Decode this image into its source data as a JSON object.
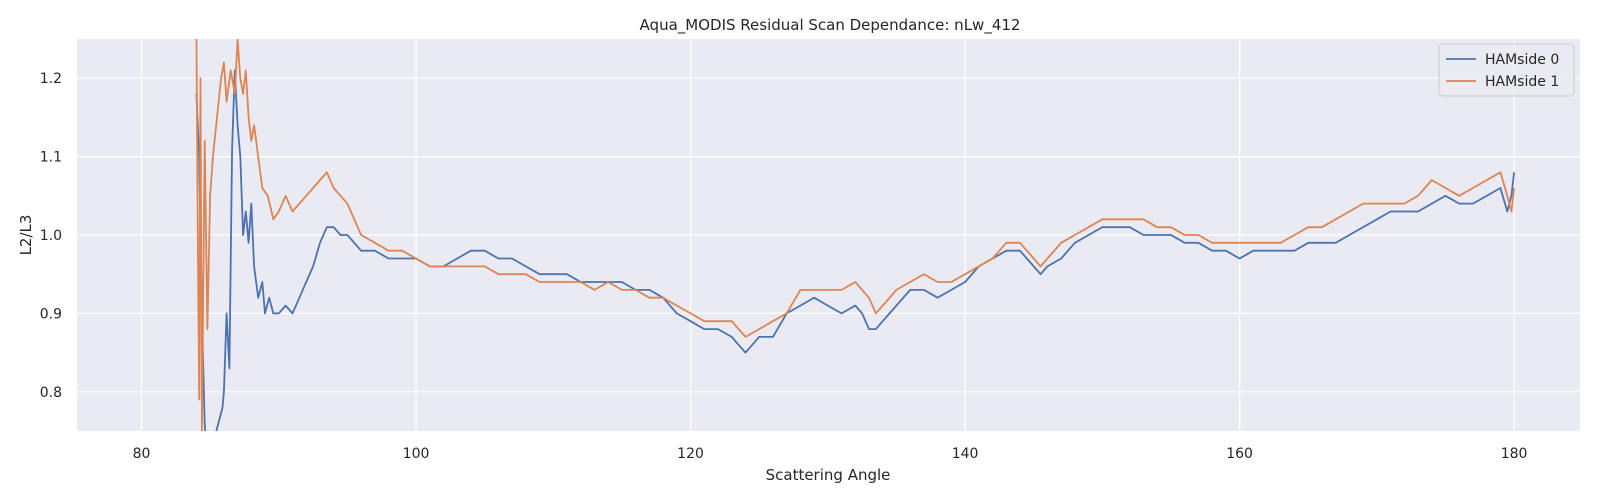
{
  "chart_data": {
    "type": "line",
    "title": "Aqua_MODIS Residual Scan Dependance: nLw_412",
    "xlabel": "Scattering Angle",
    "ylabel": "L2/L3",
    "xlim": [
      75.3,
      184.8
    ],
    "ylim": [
      0.75,
      1.25
    ],
    "xticks": [
      80,
      100,
      120,
      140,
      160,
      180
    ],
    "yticks": [
      0.8,
      0.9,
      1.0,
      1.1,
      1.2
    ],
    "xtick_labels": [
      "80",
      "100",
      "120",
      "140",
      "160",
      "180"
    ],
    "ytick_labels": [
      "0.8",
      "0.9",
      "1.0",
      "1.1",
      "1.2"
    ],
    "grid": true,
    "legend_position": "top-right",
    "background": "#eaeaf2",
    "series": [
      {
        "name": "HAMside 0",
        "color": "#4c72b0",
        "x": [
          84.0,
          84.2,
          84.4,
          84.6,
          84.8,
          85.0,
          85.3,
          85.6,
          85.9,
          86.0,
          86.2,
          86.4,
          86.6,
          86.8,
          87.0,
          87.2,
          87.4,
          87.6,
          87.8,
          88.0,
          88.2,
          88.5,
          88.8,
          89.0,
          89.3,
          89.6,
          90.0,
          90.5,
          91.0,
          91.5,
          92.0,
          92.5,
          93.0,
          93.5,
          94.0,
          94.5,
          95.0,
          96.0,
          97.0,
          98.0,
          99.0,
          100.0,
          101.0,
          102.0,
          103.0,
          104.0,
          105.0,
          106.0,
          107.0,
          108.0,
          109.0,
          110.0,
          111.0,
          112.0,
          113.0,
          114.0,
          115.0,
          116.0,
          117.0,
          118.0,
          119.0,
          120.0,
          121.0,
          122.0,
          123.0,
          123.5,
          124.0,
          124.5,
          125.0,
          126.0,
          127.0,
          128.0,
          129.0,
          130.0,
          131.0,
          132.0,
          132.5,
          133.0,
          133.5,
          134.0,
          135.0,
          136.0,
          137.0,
          138.0,
          139.0,
          140.0,
          141.0,
          142.0,
          143.0,
          144.0,
          145.0,
          145.5,
          146.0,
          147.0,
          148.0,
          149.0,
          150.0,
          151.0,
          152.0,
          153.0,
          154.0,
          155.0,
          156.0,
          157.0,
          158.0,
          159.0,
          160.0,
          161.0,
          162.0,
          163.0,
          164.0,
          165.0,
          166.0,
          167.0,
          168.0,
          169.0,
          170.0,
          171.0,
          172.0,
          173.0,
          174.0,
          175.0,
          176.0,
          177.0,
          178.0,
          179.0,
          179.5,
          179.8,
          180.0
        ],
        "y": [
          1.18,
          1.1,
          0.9,
          0.76,
          0.7,
          0.74,
          0.74,
          0.76,
          0.78,
          0.8,
          0.9,
          0.83,
          1.11,
          1.21,
          1.14,
          1.1,
          1.0,
          1.03,
          0.99,
          1.04,
          0.96,
          0.92,
          0.94,
          0.9,
          0.92,
          0.9,
          0.9,
          0.91,
          0.9,
          0.92,
          0.94,
          0.96,
          0.99,
          1.01,
          1.01,
          1.0,
          1.0,
          0.98,
          0.98,
          0.97,
          0.97,
          0.97,
          0.96,
          0.96,
          0.97,
          0.98,
          0.98,
          0.97,
          0.97,
          0.96,
          0.95,
          0.95,
          0.95,
          0.94,
          0.94,
          0.94,
          0.94,
          0.93,
          0.93,
          0.92,
          0.9,
          0.89,
          0.88,
          0.88,
          0.87,
          0.86,
          0.85,
          0.86,
          0.87,
          0.87,
          0.9,
          0.91,
          0.92,
          0.91,
          0.9,
          0.91,
          0.9,
          0.88,
          0.88,
          0.89,
          0.91,
          0.93,
          0.93,
          0.92,
          0.93,
          0.94,
          0.96,
          0.97,
          0.98,
          0.98,
          0.96,
          0.95,
          0.96,
          0.97,
          0.99,
          1.0,
          1.01,
          1.01,
          1.01,
          1.0,
          1.0,
          1.0,
          0.99,
          0.99,
          0.98,
          0.98,
          0.97,
          0.98,
          0.98,
          0.98,
          0.98,
          0.99,
          0.99,
          0.99,
          1.0,
          1.01,
          1.02,
          1.03,
          1.03,
          1.03,
          1.04,
          1.05,
          1.04,
          1.04,
          1.05,
          1.06,
          1.03,
          1.05,
          1.08
        ]
      },
      {
        "name": "HAMside 1",
        "color": "#dd8452",
        "x": [
          84.0,
          84.1,
          84.2,
          84.3,
          84.4,
          84.6,
          84.8,
          85.0,
          85.2,
          85.5,
          85.8,
          86.0,
          86.2,
          86.5,
          86.8,
          87.0,
          87.2,
          87.4,
          87.6,
          87.8,
          88.0,
          88.2,
          88.5,
          88.8,
          89.2,
          89.6,
          90.0,
          90.5,
          91.0,
          91.5,
          92.0,
          92.5,
          93.0,
          93.5,
          94.0,
          94.5,
          95.0,
          95.5,
          96.0,
          97.0,
          98.0,
          99.0,
          100.0,
          101.0,
          102.0,
          103.0,
          104.0,
          105.0,
          106.0,
          107.0,
          108.0,
          109.0,
          110.0,
          111.0,
          112.0,
          113.0,
          114.0,
          115.0,
          116.0,
          117.0,
          118.0,
          119.0,
          120.0,
          121.0,
          122.0,
          123.0,
          124.0,
          125.0,
          126.0,
          127.0,
          128.0,
          129.0,
          130.0,
          131.0,
          132.0,
          132.5,
          133.0,
          133.5,
          134.0,
          135.0,
          136.0,
          137.0,
          138.0,
          139.0,
          140.0,
          141.0,
          142.0,
          143.0,
          144.0,
          145.0,
          145.5,
          146.0,
          147.0,
          148.0,
          149.0,
          150.0,
          151.0,
          152.0,
          153.0,
          154.0,
          155.0,
          156.0,
          157.0,
          158.0,
          159.0,
          160.0,
          161.0,
          162.0,
          163.0,
          164.0,
          165.0,
          166.0,
          167.0,
          168.0,
          169.0,
          170.0,
          171.0,
          172.0,
          173.0,
          174.0,
          175.0,
          176.0,
          177.0,
          178.0,
          179.0,
          179.5,
          179.8,
          180.0
        ],
        "y": [
          1.26,
          1.0,
          0.79,
          1.2,
          0.75,
          1.12,
          0.88,
          1.05,
          1.1,
          1.15,
          1.2,
          1.22,
          1.17,
          1.21,
          1.18,
          1.25,
          1.2,
          1.18,
          1.21,
          1.15,
          1.12,
          1.14,
          1.1,
          1.06,
          1.05,
          1.02,
          1.03,
          1.05,
          1.03,
          1.04,
          1.05,
          1.06,
          1.07,
          1.08,
          1.06,
          1.05,
          1.04,
          1.02,
          1.0,
          0.99,
          0.98,
          0.98,
          0.97,
          0.96,
          0.96,
          0.96,
          0.96,
          0.96,
          0.95,
          0.95,
          0.95,
          0.94,
          0.94,
          0.94,
          0.94,
          0.93,
          0.94,
          0.93,
          0.93,
          0.92,
          0.92,
          0.91,
          0.9,
          0.89,
          0.89,
          0.89,
          0.87,
          0.88,
          0.89,
          0.9,
          0.93,
          0.93,
          0.93,
          0.93,
          0.94,
          0.93,
          0.92,
          0.9,
          0.91,
          0.93,
          0.94,
          0.95,
          0.94,
          0.94,
          0.95,
          0.96,
          0.97,
          0.99,
          0.99,
          0.97,
          0.96,
          0.97,
          0.99,
          1.0,
          1.01,
          1.02,
          1.02,
          1.02,
          1.02,
          1.01,
          1.01,
          1.0,
          1.0,
          0.99,
          0.99,
          0.99,
          0.99,
          0.99,
          0.99,
          1.0,
          1.01,
          1.01,
          1.02,
          1.03,
          1.04,
          1.04,
          1.04,
          1.04,
          1.05,
          1.07,
          1.06,
          1.05,
          1.06,
          1.07,
          1.08,
          1.05,
          1.03,
          1.06
        ]
      }
    ]
  }
}
